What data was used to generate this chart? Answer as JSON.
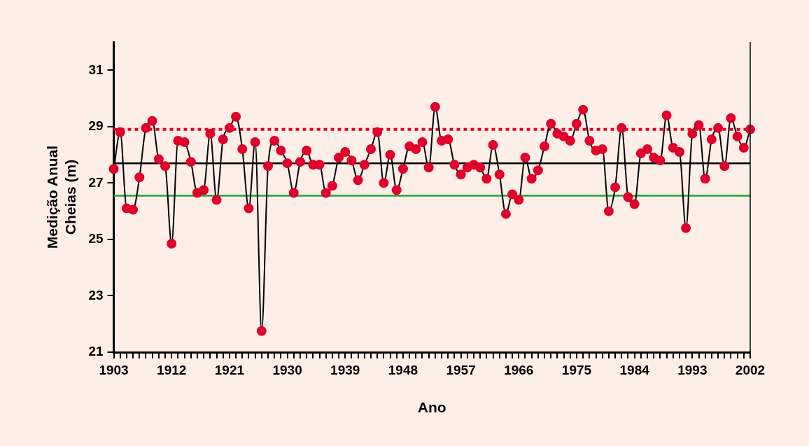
{
  "chart_data": {
    "type": "line",
    "xlabel": "Ano",
    "ylabel": "Medição Anual\nCheias (m)",
    "x": [
      1903,
      1904,
      1905,
      1906,
      1907,
      1908,
      1909,
      1910,
      1911,
      1912,
      1913,
      1914,
      1915,
      1916,
      1917,
      1918,
      1919,
      1920,
      1921,
      1922,
      1923,
      1924,
      1925,
      1926,
      1927,
      1928,
      1929,
      1930,
      1931,
      1932,
      1933,
      1934,
      1935,
      1936,
      1937,
      1938,
      1939,
      1940,
      1941,
      1942,
      1943,
      1944,
      1945,
      1946,
      1947,
      1948,
      1949,
      1950,
      1951,
      1952,
      1953,
      1954,
      1955,
      1956,
      1957,
      1958,
      1959,
      1960,
      1961,
      1962,
      1963,
      1964,
      1965,
      1966,
      1967,
      1968,
      1969,
      1970,
      1971,
      1972,
      1973,
      1974,
      1975,
      1976,
      1977,
      1978,
      1979,
      1980,
      1981,
      1982,
      1983,
      1984,
      1985,
      1986,
      1987,
      1988,
      1989,
      1990,
      1991,
      1992,
      1993,
      1994,
      1995,
      1996,
      1997,
      1998,
      1999,
      2000,
      2001,
      2002
    ],
    "series": [
      {
        "color": "#e0002a",
        "values": [
          27.5,
          28.8,
          26.1,
          26.05,
          27.2,
          28.95,
          29.2,
          27.85,
          27.6,
          24.85,
          28.5,
          28.45,
          27.75,
          26.65,
          26.75,
          28.75,
          26.4,
          28.55,
          28.95,
          29.35,
          28.2,
          26.1,
          28.45,
          21.75,
          27.6,
          28.5,
          28.15,
          27.7,
          26.65,
          27.75,
          28.15,
          27.65,
          27.65,
          26.65,
          26.9,
          27.9,
          28.1,
          27.8,
          27.1,
          27.65,
          28.2,
          28.8,
          27.0,
          28.0,
          26.75,
          27.5,
          28.3,
          28.2,
          28.45,
          27.55,
          29.7,
          28.5,
          28.55,
          27.65,
          27.3,
          27.55,
          27.65,
          27.55,
          27.15,
          28.35,
          27.3,
          25.9,
          26.6,
          26.4,
          27.9,
          27.15,
          27.45,
          28.3,
          29.1,
          28.75,
          28.65,
          28.5,
          29.1,
          29.6,
          28.5,
          28.15,
          28.2,
          26.0,
          26.85,
          28.95,
          26.5,
          26.25,
          28.05,
          28.2,
          27.9,
          27.8,
          29.4,
          28.25,
          28.1,
          25.4,
          28.75,
          29.05,
          27.15,
          28.55,
          28.95,
          27.6,
          29.3,
          28.65,
          28.25,
          28.9
        ]
      }
    ],
    "xlim": [
      1903,
      2002
    ],
    "xticks": [
      1903,
      {
        "value": 1904,
        "label": null
      },
      {
        "value": 1905,
        "label": null
      },
      {
        "value": 1906,
        "label": null
      },
      {
        "value": 1907,
        "label": null
      },
      {
        "value": 1908,
        "label": null
      },
      {
        "value": 1909,
        "label": null
      },
      {
        "value": 1910,
        "label": null
      },
      {
        "value": 1911,
        "label": null
      },
      1912,
      {
        "value": 1913,
        "label": null
      },
      {
        "value": 1914,
        "label": null
      },
      {
        "value": 1915,
        "label": null
      },
      {
        "value": 1916,
        "label": null
      },
      {
        "value": 1917,
        "label": null
      },
      {
        "value": 1918,
        "label": null
      },
      {
        "value": 1919,
        "label": null
      },
      {
        "value": 1920,
        "label": null
      },
      1921,
      {
        "value": 1922,
        "label": null
      },
      {
        "value": 1923,
        "label": null
      },
      {
        "value": 1924,
        "label": null
      },
      {
        "value": 1925,
        "label": null
      },
      {
        "value": 1926,
        "label": null
      },
      {
        "value": 1927,
        "label": null
      },
      {
        "value": 1928,
        "label": null
      },
      {
        "value": 1929,
        "label": null
      },
      1930,
      {
        "value": 1931,
        "label": null
      },
      {
        "value": 1932,
        "label": null
      },
      {
        "value": 1933,
        "label": null
      },
      {
        "value": 1934,
        "label": null
      },
      {
        "value": 1935,
        "label": null
      },
      {
        "value": 1936,
        "label": null
      },
      {
        "value": 1937,
        "label": null
      },
      {
        "value": 1938,
        "label": null
      },
      1939,
      {
        "value": 1940,
        "label": null
      },
      {
        "value": 1941,
        "label": null
      },
      {
        "value": 1942,
        "label": null
      },
      {
        "value": 1943,
        "label": null
      },
      {
        "value": 1944,
        "label": null
      },
      {
        "value": 1945,
        "label": null
      },
      {
        "value": 1946,
        "label": null
      },
      {
        "value": 1947,
        "label": null
      },
      1948,
      {
        "value": 1949,
        "label": null
      },
      {
        "value": 1950,
        "label": null
      },
      {
        "value": 1951,
        "label": null
      },
      {
        "value": 1952,
        "label": null
      },
      {
        "value": 1953,
        "label": null
      },
      {
        "value": 1954,
        "label": null
      },
      {
        "value": 1955,
        "label": null
      },
      {
        "value": 1956,
        "label": null
      },
      1957,
      {
        "value": 1958,
        "label": null
      },
      {
        "value": 1959,
        "label": null
      },
      {
        "value": 1960,
        "label": null
      },
      {
        "value": 1961,
        "label": null
      },
      {
        "value": 1962,
        "label": null
      },
      {
        "value": 1963,
        "label": null
      },
      {
        "value": 1964,
        "label": null
      },
      {
        "value": 1965,
        "label": null
      },
      1966,
      {
        "value": 1967,
        "label": null
      },
      {
        "value": 1968,
        "label": null
      },
      {
        "value": 1969,
        "label": null
      },
      {
        "value": 1970,
        "label": null
      },
      {
        "value": 1971,
        "label": null
      },
      {
        "value": 1972,
        "label": null
      },
      {
        "value": 1973,
        "label": null
      },
      {
        "value": 1974,
        "label": null
      },
      1975,
      {
        "value": 1976,
        "label": null
      },
      {
        "value": 1977,
        "label": null
      },
      {
        "value": 1978,
        "label": null
      },
      {
        "value": 1979,
        "label": null
      },
      {
        "value": 1980,
        "label": null
      },
      {
        "value": 1981,
        "label": null
      },
      {
        "value": 1982,
        "label": null
      },
      {
        "value": 1983,
        "label": null
      },
      1984,
      {
        "value": 1985,
        "label": null
      },
      {
        "value": 1986,
        "label": null
      },
      {
        "value": 1987,
        "label": null
      },
      {
        "value": 1988,
        "label": null
      },
      {
        "value": 1989,
        "label": null
      },
      {
        "value": 1990,
        "label": null
      },
      {
        "value": 1991,
        "label": null
      },
      {
        "value": 1992,
        "label": null
      },
      1993,
      {
        "value": 1994,
        "label": null
      },
      {
        "value": 1995,
        "label": null
      },
      {
        "value": 1996,
        "label": null
      },
      {
        "value": 1997,
        "label": null
      },
      {
        "value": 1998,
        "label": null
      },
      {
        "value": 1999,
        "label": null
      },
      {
        "value": 2000,
        "label": null
      },
      {
        "value": 2001,
        "label": null
      },
      2002
    ],
    "ylim": [
      21,
      32
    ],
    "yticks": [
      21,
      23,
      25,
      27,
      29,
      31
    ],
    "ref_lines": [
      {
        "axis": "y",
        "value": 28.9,
        "color": "#e0002a",
        "line_style": "dotted"
      },
      {
        "axis": "y",
        "value": 27.7,
        "color": "#000000",
        "line_style": "solid"
      },
      {
        "axis": "y",
        "value": 26.55,
        "color": "#1aa535",
        "line_style": "solid"
      }
    ],
    "marker": "circle",
    "line_style": "solid",
    "grid": false,
    "legend": false
  }
}
